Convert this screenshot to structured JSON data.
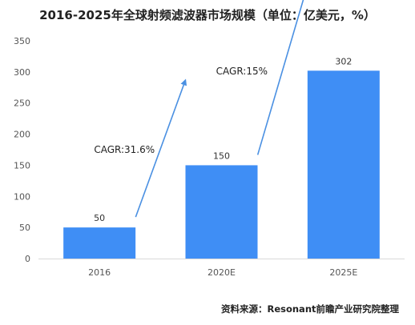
{
  "chart_data": {
    "type": "bar",
    "title": "2016-2025年全球射频滤波器市场规模（单位：亿美元，%）",
    "categories": [
      "2016",
      "2020E",
      "2025E"
    ],
    "values": [
      50,
      150,
      302
    ],
    "ylim": [
      0,
      350
    ],
    "yticks": [
      0,
      50,
      100,
      150,
      200,
      250,
      300,
      350
    ],
    "grid": false,
    "annotations": [
      {
        "text": "CAGR:31.6%",
        "between": [
          "2016",
          "2020E"
        ]
      },
      {
        "text": "CAGR:15%",
        "between": [
          "2020E",
          "2025E"
        ]
      }
    ],
    "bar_color": "#3f8ef5",
    "arrow_color": "#4a90e2"
  },
  "source": "资料来源：Resonant前瞻产业研究院整理"
}
